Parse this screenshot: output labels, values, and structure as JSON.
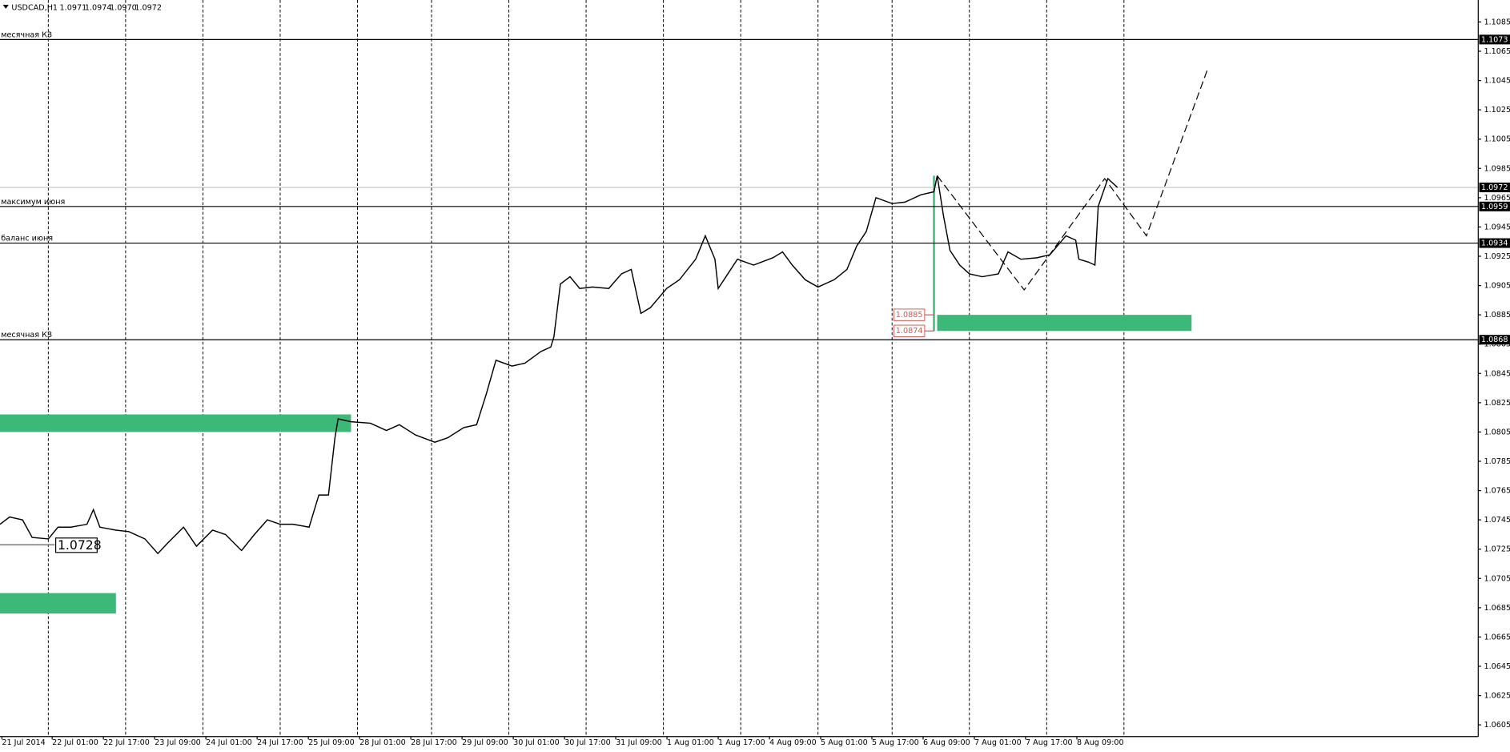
{
  "chart_data": {
    "type": "line",
    "symbol": "USDCAD,H1",
    "ohlc": [
      "1.0971",
      "1.0974",
      "1.0970",
      "1.0972"
    ],
    "xlim": [
      0,
      459
    ],
    "ylim": [
      1.0597,
      1.11
    ],
    "yticks": [
      1.0605,
      1.0625,
      1.0645,
      1.0665,
      1.0685,
      1.0705,
      1.0725,
      1.0745,
      1.0765,
      1.0785,
      1.0805,
      1.0825,
      1.0845,
      1.0865,
      1.0885,
      1.0905,
      1.0925,
      1.0945,
      1.0965,
      1.0985,
      1.1005,
      1.1025,
      1.1045,
      1.1065,
      1.1085
    ],
    "xticks": [
      15,
      39,
      63,
      87,
      111,
      134,
      158,
      182,
      206,
      230,
      254,
      277,
      301,
      325,
      349
    ],
    "time_labels": [
      "21 Jul 2014",
      "22 Jul 01:00",
      "22 Jul 17:00",
      "23 Jul 09:00",
      "24 Jul 01:00",
      "24 Jul 17:00",
      "25 Jul 09:00",
      "28 Jul 01:00",
      "28 Jul 17:00",
      "29 Jul 09:00",
      "30 Jul 01:00",
      "30 Jul 17:00",
      "31 Jul 09:00",
      "1 Aug 01:00",
      "1 Aug 17:00",
      "4 Aug 09:00",
      "5 Aug 01:00",
      "5 Aug 17:00",
      "6 Aug 09:00",
      "7 Aug 01:00",
      "7 Aug 17:00",
      "8 Aug 09:00"
    ],
    "grid": true,
    "series": [
      {
        "name": "USDCAD,H1",
        "color": "#000000",
        "x": [
          0,
          3,
          7,
          10,
          15,
          18,
          22,
          27,
          29,
          31,
          36,
          40,
          45,
          49,
          52,
          57,
          61,
          66,
          70,
          75,
          79,
          83,
          87,
          91,
          96,
          99,
          102,
          104,
          105,
          109,
          115,
          120,
          124,
          129,
          135,
          139,
          144,
          148,
          151,
          154,
          159,
          163,
          168,
          171,
          172,
          174,
          177,
          180,
          184,
          189,
          193,
          196,
          199,
          202,
          207,
          211,
          216,
          219,
          222,
          223,
          226,
          229,
          234,
          240,
          243,
          246,
          250,
          254,
          259,
          263,
          266,
          269,
          272,
          277,
          281,
          286,
          290,
          291,
          293,
          295,
          298,
          301,
          305,
          310,
          313,
          317,
          322,
          326,
          331,
          334,
          335,
          338,
          340,
          341,
          344,
          347
        ],
        "values": [
          1.0742,
          1.0747,
          1.0745,
          1.0733,
          1.0732,
          1.074,
          1.074,
          1.0742,
          1.0752,
          1.074,
          1.0738,
          1.0737,
          1.0732,
          1.0722,
          1.0729,
          1.074,
          1.0727,
          1.0738,
          1.0735,
          1.0724,
          1.0735,
          1.0745,
          1.0742,
          1.0742,
          1.074,
          1.0762,
          1.0762,
          1.0801,
          1.0814,
          1.0812,
          1.0811,
          1.0806,
          1.081,
          1.0803,
          1.0798,
          1.0801,
          1.0808,
          1.081,
          1.0831,
          1.0854,
          1.085,
          1.0852,
          1.086,
          1.0863,
          1.087,
          1.0906,
          1.0911,
          1.0903,
          1.0904,
          1.0903,
          1.0913,
          1.0916,
          1.0886,
          1.089,
          1.0903,
          1.0909,
          1.0923,
          1.0939,
          1.0923,
          1.0903,
          1.0913,
          1.0923,
          1.0919,
          1.0924,
          1.0928,
          1.0919,
          1.0909,
          1.0904,
          1.0909,
          1.0916,
          1.0932,
          1.0942,
          1.0965,
          1.0961,
          1.0962,
          1.0967,
          1.0969,
          1.098,
          1.0952,
          1.0929,
          1.0919,
          1.0913,
          1.0911,
          1.0913,
          1.0928,
          1.0923,
          1.0924,
          1.0926,
          1.0939,
          1.0936,
          1.0923,
          1.0921,
          1.0919,
          1.0959,
          1.0978,
          1.0972
        ]
      }
    ],
    "current_price": 1.0972,
    "levels": [
      {
        "name": "месячная КЗ",
        "value": 1.1073
      },
      {
        "name": "максимум июня",
        "value": 1.0959
      },
      {
        "name": "баланс июня",
        "value": 1.0934
      },
      {
        "name": "месячная КЗ",
        "value": 1.0868
      }
    ],
    "zone_color": "#3cb878",
    "zones": [
      {
        "from": 0,
        "to": 109,
        "high": 1.0817,
        "low": 1.0805
      },
      {
        "from": 0,
        "to": 36,
        "high": 1.0695,
        "low": 1.0681
      },
      {
        "from": 291,
        "to": 370,
        "high": 1.0885,
        "low": 1.0874
      }
    ],
    "impulse": {
      "x": 290,
      "from": 1.098,
      "to": 1.0874
    },
    "marker": {
      "value": 1.0728,
      "from": 0,
      "to": 17
    },
    "forecast": {
      "x": [
        291,
        318,
        343,
        356,
        375
      ],
      "values": [
        1.098,
        1.0902,
        1.0978,
        1.0939,
        1.1053
      ]
    }
  }
}
